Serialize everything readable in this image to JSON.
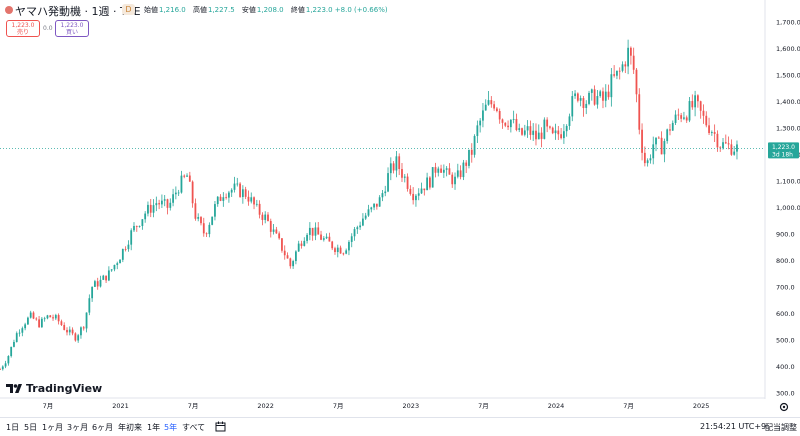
{
  "header": {
    "symbol": "ヤマハ発動機 · 1週 · TSE",
    "d_badge": "D",
    "ohlc": [
      {
        "label": "始値",
        "value": "1,216.0"
      },
      {
        "label": "高値",
        "value": "1,227.5"
      },
      {
        "label": "安値",
        "value": "1,208.0"
      },
      {
        "label": "終値",
        "value": "1,223.0 +8.0 (+0.66%)"
      }
    ],
    "sell_price": "1,223.0",
    "sell_label": "売り",
    "spread": "0.0",
    "buy_price": "1,223.0",
    "buy_label": "買い"
  },
  "logo_text": "TradingView",
  "bottom": {
    "ranges": [
      "1日",
      "5日",
      "1ヶ月",
      "3ヶ月",
      "6ヶ月",
      "年初来",
      "1年",
      "5年",
      "すべて"
    ],
    "active_range": "5年",
    "clock": "21:54:21 UTC+9",
    "adjust": "配当調整"
  },
  "colors": {
    "up": "#26a69a",
    "down": "#ef5350",
    "price_label": "#26a69a"
  },
  "chart_data": {
    "type": "candlestick",
    "interval": "1週",
    "y_ticks": [
      "300.0",
      "400.0",
      "500.0",
      "600.0",
      "700.0",
      "800.0",
      "900.0",
      "1,000.0",
      "1,100.0",
      "1,200.0",
      "1,300.0",
      "1,400.0",
      "1,500.0",
      "1,600.0",
      "1,700.0"
    ],
    "ylim": [
      285,
      1745
    ],
    "x_ticks": [
      {
        "t": 2020.5,
        "label": "7月"
      },
      {
        "t": 2021.0,
        "label": "2021"
      },
      {
        "t": 2021.5,
        "label": "7月"
      },
      {
        "t": 2022.0,
        "label": "2022"
      },
      {
        "t": 2022.5,
        "label": "7月"
      },
      {
        "t": 2023.0,
        "label": "2023"
      },
      {
        "t": 2023.5,
        "label": "7月"
      },
      {
        "t": 2024.0,
        "label": "2024"
      },
      {
        "t": 2024.5,
        "label": "7月"
      },
      {
        "t": 2025.0,
        "label": "2025"
      }
    ],
    "xlim": [
      2020.17,
      2025.44
    ],
    "last_price": "1,223.0",
    "countdown": "3d 18h",
    "price_path": [
      [
        2020.17,
        390
      ],
      [
        2020.22,
        430
      ],
      [
        2020.28,
        520
      ],
      [
        2020.33,
        560
      ],
      [
        2020.38,
        590
      ],
      [
        2020.44,
        560
      ],
      [
        2020.5,
        590
      ],
      [
        2020.56,
        580
      ],
      [
        2020.62,
        540
      ],
      [
        2020.69,
        510
      ],
      [
        2020.75,
        560
      ],
      [
        2020.8,
        700
      ],
      [
        2020.86,
        720
      ],
      [
        2020.92,
        750
      ],
      [
        2021.0,
        820
      ],
      [
        2021.08,
        910
      ],
      [
        2021.17,
        980
      ],
      [
        2021.25,
        1020
      ],
      [
        2021.33,
        1000
      ],
      [
        2021.4,
        1080
      ],
      [
        2021.46,
        1120
      ],
      [
        2021.52,
        960
      ],
      [
        2021.58,
        900
      ],
      [
        2021.65,
        1000
      ],
      [
        2021.71,
        1060
      ],
      [
        2021.79,
        1070
      ],
      [
        2021.87,
        1050
      ],
      [
        2021.94,
        990
      ],
      [
        2022.0,
        960
      ],
      [
        2022.06,
        900
      ],
      [
        2022.12,
        840
      ],
      [
        2022.17,
        780
      ],
      [
        2022.23,
        860
      ],
      [
        2022.29,
        920
      ],
      [
        2022.35,
        900
      ],
      [
        2022.42,
        870
      ],
      [
        2022.48,
        850
      ],
      [
        2022.54,
        840
      ],
      [
        2022.6,
        900
      ],
      [
        2022.67,
        960
      ],
      [
        2022.73,
        990
      ],
      [
        2022.79,
        1030
      ],
      [
        2022.85,
        1130
      ],
      [
        2022.9,
        1170
      ],
      [
        2022.96,
        1110
      ],
      [
        2023.02,
        1050
      ],
      [
        2023.08,
        1080
      ],
      [
        2023.13,
        1100
      ],
      [
        2023.19,
        1170
      ],
      [
        2023.25,
        1120
      ],
      [
        2023.31,
        1100
      ],
      [
        2023.37,
        1160
      ],
      [
        2023.42,
        1210
      ],
      [
        2023.46,
        1300
      ],
      [
        2023.52,
        1380
      ],
      [
        2023.58,
        1400
      ],
      [
        2023.63,
        1330
      ],
      [
        2023.69,
        1330
      ],
      [
        2023.75,
        1270
      ],
      [
        2023.81,
        1290
      ],
      [
        2023.87,
        1260
      ],
      [
        2023.92,
        1300
      ],
      [
        2023.98,
        1260
      ],
      [
        2024.04,
        1290
      ],
      [
        2024.1,
        1380
      ],
      [
        2024.15,
        1430
      ],
      [
        2024.21,
        1400
      ],
      [
        2024.27,
        1420
      ],
      [
        2024.33,
        1400
      ],
      [
        2024.38,
        1470
      ],
      [
        2024.44,
        1510
      ],
      [
        2024.5,
        1590
      ],
      [
        2024.54,
        1510
      ],
      [
        2024.58,
        1270
      ],
      [
        2024.62,
        1150
      ],
      [
        2024.67,
        1240
      ],
      [
        2024.73,
        1230
      ],
      [
        2024.79,
        1310
      ],
      [
        2024.85,
        1350
      ],
      [
        2024.9,
        1360
      ],
      [
        2024.96,
        1390
      ],
      [
        2025.02,
        1330
      ],
      [
        2025.08,
        1290
      ],
      [
        2025.13,
        1240
      ],
      [
        2025.19,
        1230
      ],
      [
        2025.25,
        1223
      ]
    ]
  }
}
